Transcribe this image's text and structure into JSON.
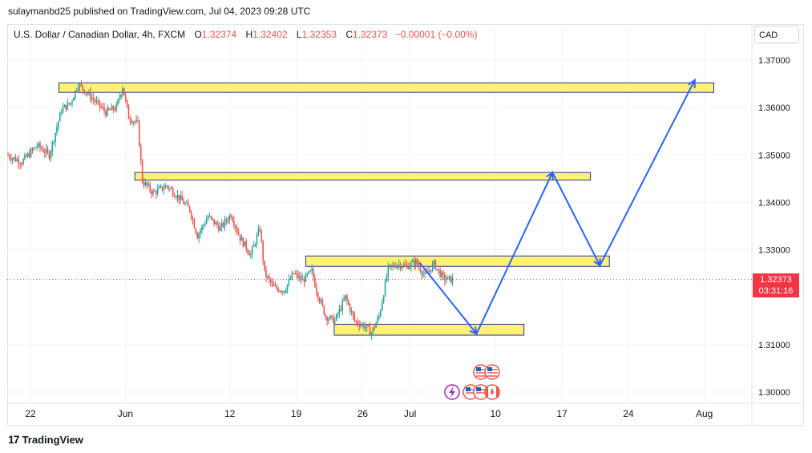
{
  "publish": {
    "text": "sulaymanbd25 published on TradingView.com, Jul 04, 2023 09:28 UTC"
  },
  "legend": {
    "symbol": "U.S. Dollar / Canadian Dollar, 4h, FXCM",
    "o_label": "O",
    "o": "1.32374",
    "h_label": "H",
    "h": "1.32402",
    "l_label": "L",
    "l": "1.32353",
    "c_label": "C",
    "c": "1.32373",
    "change": "−0.00001 (−0.00%)"
  },
  "currency": "CAD",
  "price_tag": {
    "price": "1.32373",
    "countdown": "03:31:16"
  },
  "footer": {
    "logo_mark": "17",
    "logo_text": "TradingView"
  },
  "colors": {
    "up": "#26a69a",
    "down": "#ef5350",
    "zone_fill": "#fff176",
    "zone_border": "#1e3a8a",
    "arrow": "#2962ff",
    "grid": "#f0f3fa"
  },
  "icons": [
    "us-flag-icon",
    "canada-flag-icon",
    "lightning-icon"
  ],
  "chart_data": {
    "type": "candlestick",
    "symbol": "USDCAD",
    "timeframe": "4h",
    "ylim": [
      1.2985,
      1.3718
    ],
    "y_ticks": [
      "1.37000",
      "1.36000",
      "1.35000",
      "1.34000",
      "1.33000",
      "1.31000",
      "1.30000"
    ],
    "x_ticks": [
      "22",
      "Jun",
      "12",
      "19",
      "26",
      "Jul",
      "10",
      "17",
      "24",
      "Aug"
    ],
    "key_points": [
      {
        "t": 0,
        "price": 1.35
      },
      {
        "t": 10,
        "price": 1.3485
      },
      {
        "t": 20,
        "price": 1.352
      },
      {
        "t": 28,
        "price": 1.35
      },
      {
        "t": 36,
        "price": 1.3595
      },
      {
        "t": 42,
        "price": 1.361
      },
      {
        "t": 47,
        "price": 1.365
      },
      {
        "t": 56,
        "price": 1.362
      },
      {
        "t": 65,
        "price": 1.359
      },
      {
        "t": 72,
        "price": 1.36
      },
      {
        "t": 76,
        "price": 1.3645
      },
      {
        "t": 80,
        "price": 1.358
      },
      {
        "t": 86,
        "price": 1.3565
      },
      {
        "t": 89,
        "price": 1.3445
      },
      {
        "t": 96,
        "price": 1.342
      },
      {
        "t": 105,
        "price": 1.3435
      },
      {
        "t": 113,
        "price": 1.341
      },
      {
        "t": 120,
        "price": 1.3385
      },
      {
        "t": 125,
        "price": 1.333
      },
      {
        "t": 132,
        "price": 1.337
      },
      {
        "t": 140,
        "price": 1.3345
      },
      {
        "t": 147,
        "price": 1.3375
      },
      {
        "t": 153,
        "price": 1.3325
      },
      {
        "t": 160,
        "price": 1.329
      },
      {
        "t": 166,
        "price": 1.3345
      },
      {
        "t": 169,
        "price": 1.325
      },
      {
        "t": 175,
        "price": 1.322
      },
      {
        "t": 182,
        "price": 1.3215
      },
      {
        "t": 188,
        "price": 1.325
      },
      {
        "t": 194,
        "price": 1.3235
      },
      {
        "t": 200,
        "price": 1.3255
      },
      {
        "t": 203,
        "price": 1.3215
      },
      {
        "t": 209,
        "price": 1.316
      },
      {
        "t": 215,
        "price": 1.315
      },
      {
        "t": 222,
        "price": 1.32
      },
      {
        "t": 228,
        "price": 1.315
      },
      {
        "t": 234,
        "price": 1.314
      },
      {
        "t": 239,
        "price": 1.3125
      },
      {
        "t": 244,
        "price": 1.316
      },
      {
        "t": 250,
        "price": 1.326
      },
      {
        "t": 256,
        "price": 1.327
      },
      {
        "t": 262,
        "price": 1.3265
      },
      {
        "t": 268,
        "price": 1.3275
      },
      {
        "t": 274,
        "price": 1.3245
      },
      {
        "t": 280,
        "price": 1.327
      },
      {
        "t": 286,
        "price": 1.324
      },
      {
        "t": 291,
        "price": 1.3237
      }
    ],
    "current_price": 1.32373,
    "zones": [
      {
        "price_top": 1.3652,
        "price_bottom": 1.3632,
        "start": "May 25",
        "end": "Aug 2"
      },
      {
        "price_top": 1.3463,
        "price_bottom": 1.3447,
        "start": "Jun 2",
        "end": "Jul 20"
      },
      {
        "price_top": 1.3287,
        "price_bottom": 1.3265,
        "start": "Jun 20",
        "end": "Jul 22"
      },
      {
        "price_top": 1.3143,
        "price_bottom": 1.312,
        "start": "Jun 23",
        "end": "Jul 13"
      }
    ],
    "projection_path": [
      {
        "date": "Jul 2",
        "price": 1.3273
      },
      {
        "date": "Jul 8",
        "price": 1.3123
      },
      {
        "date": "Jul 16",
        "price": 1.3463
      },
      {
        "date": "Jul 21",
        "price": 1.3267
      },
      {
        "date": "Jul 31",
        "price": 1.3658
      }
    ]
  }
}
